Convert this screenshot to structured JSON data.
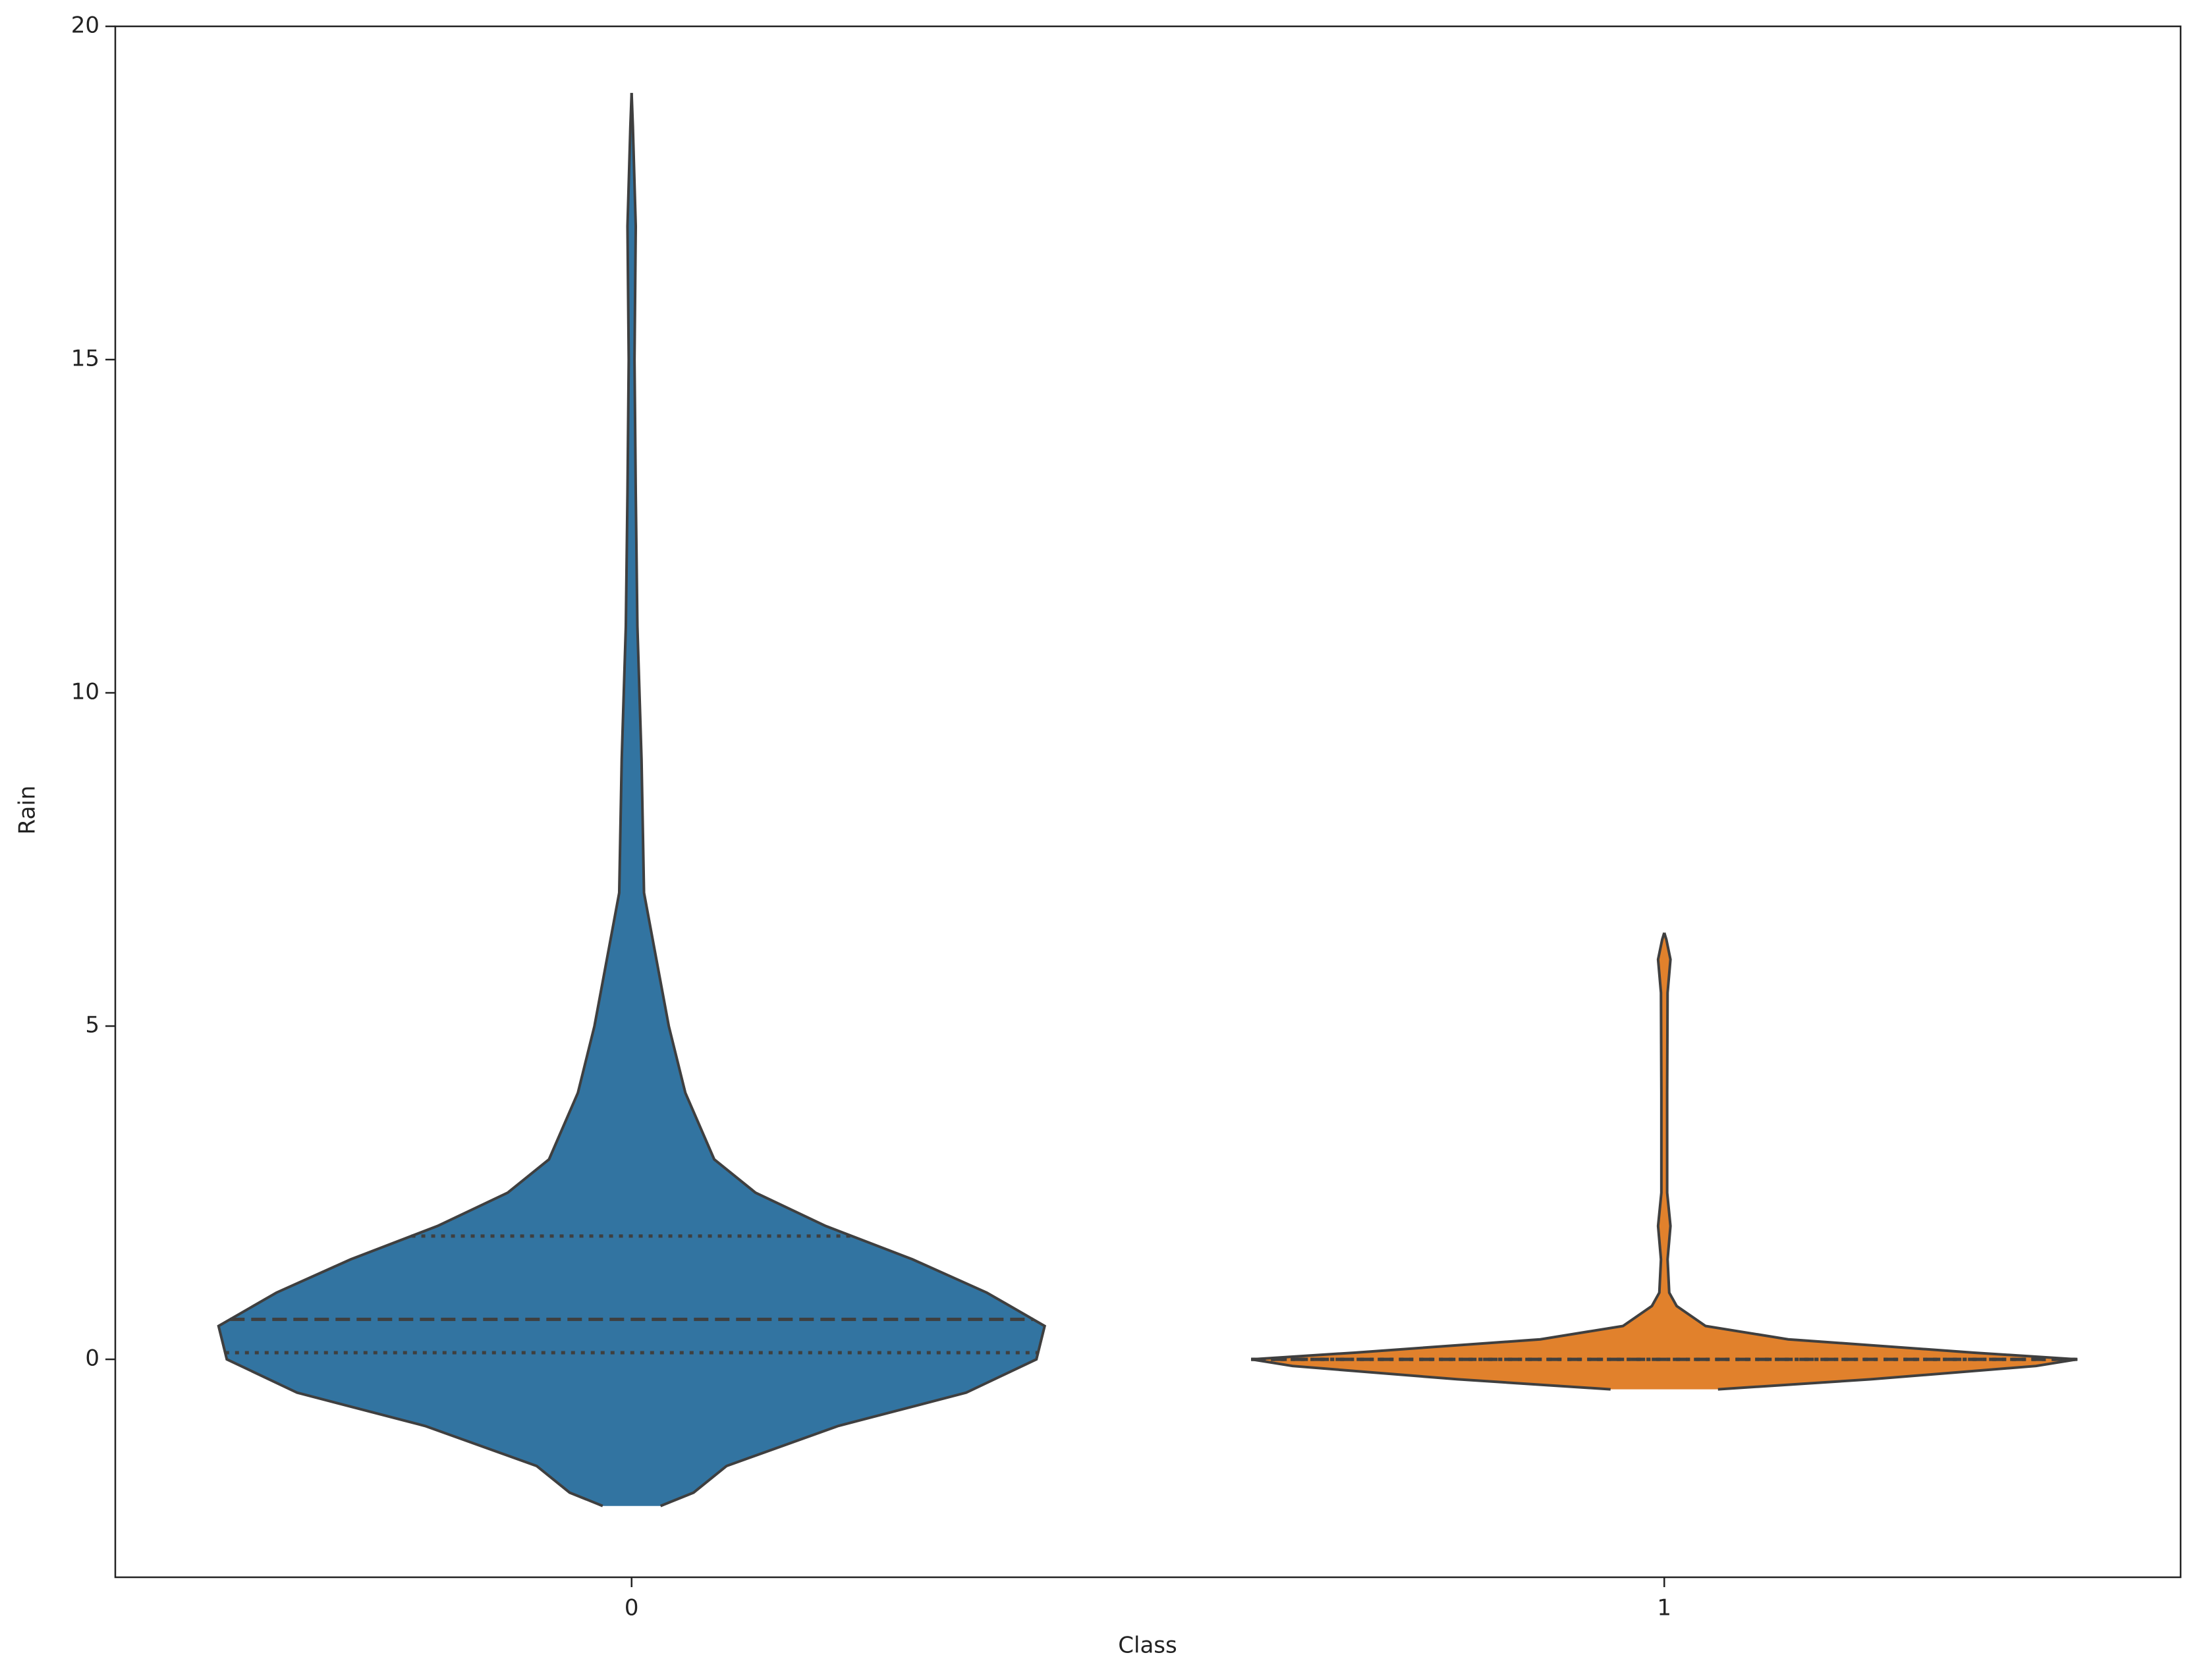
{
  "chart_data": {
    "type": "violin",
    "x_label": "Class",
    "y_label": "Rain",
    "categories": [
      "0",
      "1"
    ],
    "violins": [
      {
        "color": "#3274a1",
        "y": [
          -2.2,
          -2.0,
          -1.6,
          -1.0,
          -0.5,
          0,
          0.5,
          1.0,
          1.5,
          2.0,
          2.5,
          3.0,
          4.0,
          5.0,
          6.0,
          7.0,
          9.0,
          11.0,
          13.0,
          15.0,
          17.0,
          18.5,
          19.0
        ],
        "density": [
          0.07,
          0.15,
          0.23,
          0.5,
          0.81,
          0.98,
          1.0,
          0.86,
          0.68,
          0.47,
          0.3,
          0.2,
          0.13,
          0.09,
          0.06,
          0.03,
          0.024,
          0.014,
          0.01,
          0.007,
          0.01,
          0.003,
          0
        ],
        "q1": 0.1,
        "median": 0.6,
        "q3": 1.85
      },
      {
        "color": "#e1812c",
        "y": [
          -0.45,
          -0.3,
          -0.1,
          0,
          0.1,
          0.3,
          0.5,
          0.8,
          1.0,
          1.5,
          2.0,
          2.5,
          4.0,
          5.5,
          6.0,
          6.3,
          6.4
        ],
        "density": [
          0.13,
          0.5,
          0.9,
          1.0,
          0.75,
          0.3,
          0.1,
          0.03,
          0.012,
          0.008,
          0.015,
          0.007,
          0.007,
          0.008,
          0.015,
          0.005,
          0
        ],
        "q1": 0,
        "median": 0,
        "q3": 0
      }
    ],
    "ylim": [
      -3.27,
      20
    ],
    "yticks": [
      0,
      5,
      10,
      15,
      20
    ],
    "grid": false
  }
}
